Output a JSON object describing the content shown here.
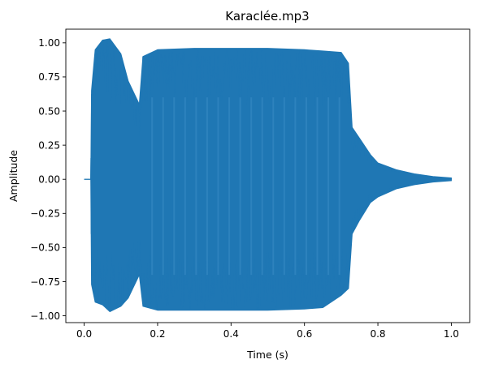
{
  "chart_data": {
    "type": "line",
    "title": "Karaclée.mp3",
    "xlabel": "Time (s)",
    "ylabel": "Amplitude",
    "xlim": [
      -0.05,
      1.05
    ],
    "ylim": [
      -1.05,
      1.1
    ],
    "xticks": [
      0.0,
      0.2,
      0.4,
      0.6,
      0.8,
      1.0
    ],
    "xtick_labels": [
      "0.0",
      "0.2",
      "0.4",
      "0.6",
      "0.8",
      "1.0"
    ],
    "yticks": [
      -1.0,
      -0.75,
      -0.5,
      -0.25,
      0.0,
      0.25,
      0.5,
      0.75,
      1.0
    ],
    "ytick_labels": [
      "−1.00",
      "−0.75",
      "−0.50",
      "−0.25",
      "0.00",
      "0.25",
      "0.50",
      "0.75",
      "1.00"
    ],
    "grid": false,
    "series": [
      {
        "color": "#1f77b4",
        "x": [
          0.0,
          0.018,
          0.02,
          0.03,
          0.05,
          0.07,
          0.1,
          0.12,
          0.15,
          0.16,
          0.2,
          0.3,
          0.4,
          0.5,
          0.6,
          0.65,
          0.7,
          0.72,
          0.73,
          0.75,
          0.78,
          0.8,
          0.85,
          0.9,
          0.95,
          1.0
        ],
        "upper": [
          0.0,
          0.0,
          0.65,
          0.95,
          1.02,
          1.03,
          0.92,
          0.72,
          0.55,
          0.9,
          0.95,
          0.96,
          0.96,
          0.96,
          0.95,
          0.94,
          0.93,
          0.85,
          0.38,
          0.3,
          0.18,
          0.12,
          0.07,
          0.04,
          0.02,
          0.01
        ],
        "lower": [
          0.0,
          0.0,
          -0.77,
          -0.9,
          -0.92,
          -0.97,
          -0.93,
          -0.87,
          -0.7,
          -0.93,
          -0.96,
          -0.96,
          -0.96,
          -0.96,
          -0.95,
          -0.94,
          -0.85,
          -0.8,
          -0.4,
          -0.3,
          -0.17,
          -0.13,
          -0.07,
          -0.04,
          -0.02,
          -0.01
        ]
      }
    ]
  }
}
